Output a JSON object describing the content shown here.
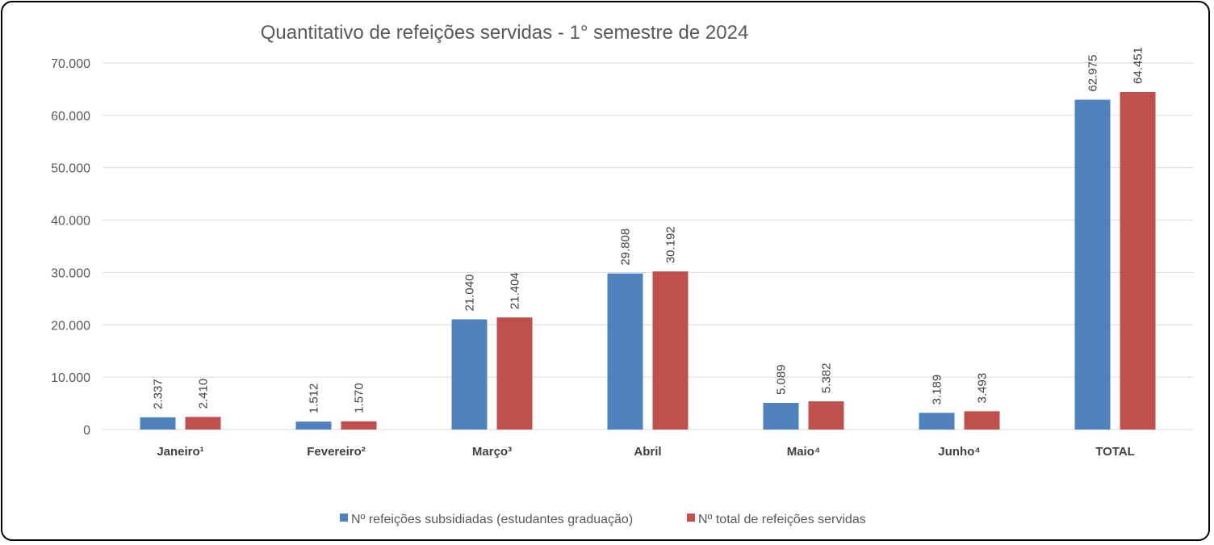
{
  "chart_data": {
    "type": "bar",
    "title": "Quantitativo de refeições servidas - 1° semestre de 2024",
    "categories": [
      "Janeiro¹",
      "Fevereiro²",
      "Março³",
      "Abril",
      "Maio⁴",
      "Junho⁴",
      "TOTAL"
    ],
    "series": [
      {
        "name": "Nº refeições subsidiadas (estudantes graduação)",
        "color": "#4F81BD",
        "values": [
          2337,
          1512,
          21040,
          29808,
          5089,
          3189,
          62975
        ],
        "labels": [
          "2.337",
          "1.512",
          "21.040",
          "29.808",
          "5.089",
          "3.189",
          "62.975"
        ]
      },
      {
        "name": "Nº total de refeições servidas",
        "color": "#C0504D",
        "values": [
          2410,
          1570,
          21404,
          30192,
          5382,
          3493,
          64451
        ],
        "labels": [
          "2.410",
          "1.570",
          "21.404",
          "30.192",
          "5.382",
          "3.493",
          "64.451"
        ]
      }
    ],
    "ylim": [
      0,
      70000
    ],
    "yticks": [
      0,
      10000,
      20000,
      30000,
      40000,
      50000,
      60000,
      70000
    ],
    "ytick_labels": [
      "0",
      "10.000",
      "20.000",
      "30.000",
      "40.000",
      "50.000",
      "60.000",
      "70.000"
    ],
    "xlabel": "",
    "ylabel": "",
    "grid": true,
    "legend": "bottom"
  }
}
